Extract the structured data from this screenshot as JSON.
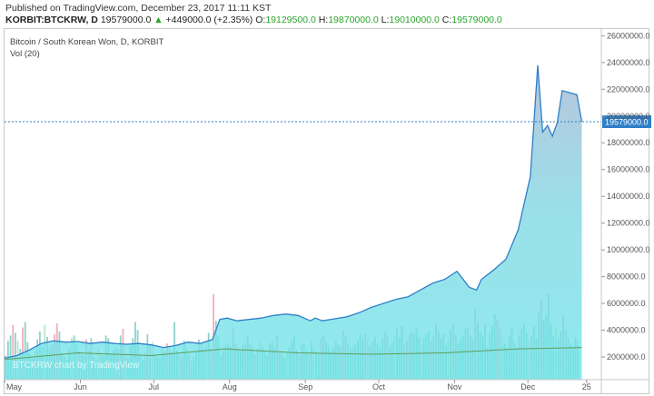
{
  "header": {
    "published": "Published on TradingView.com, December 23, 2017 11:11 KST",
    "symbol": "KORBIT:BTCKRW, D",
    "last": "19579000.0",
    "change": "+449000.0 (+2.35%)",
    "o_label": "O:",
    "o": "19129500.0",
    "h_label": "H:",
    "h": "19870000.0",
    "l_label": "L:",
    "l": "19010000.0",
    "c_label": "C:",
    "c": "19579000.0"
  },
  "chart_data": {
    "type": "area",
    "title": "Bitcoin / South Korean Won, D, KORBIT",
    "subtitle": "Vol (20)",
    "watermark": "BTCKRW chart by TradingView",
    "current_price_label": "19579000.0",
    "current_price": 19579000,
    "ylim": [
      0,
      26500000
    ],
    "y_ticks": [
      "2000000.0",
      "4000000.0",
      "6000000.0",
      "8000000.0",
      "10000000.0",
      "12000000.0",
      "14000000.0",
      "16000000.0",
      "18000000.0",
      "20000000.0",
      "22000000.0",
      "24000000.0",
      "26000000.0"
    ],
    "y_tick_values": [
      2000000,
      4000000,
      6000000,
      8000000,
      10000000,
      12000000,
      14000000,
      16000000,
      18000000,
      20000000,
      22000000,
      24000000,
      26000000
    ],
    "x_ticks": [
      "May",
      "Jun",
      "Jul",
      "Aug",
      "Sep",
      "Oct",
      "Nov",
      "Dec",
      "25"
    ],
    "x_tick_day_index": [
      0,
      31,
      61,
      92,
      123,
      153,
      184,
      214,
      238
    ],
    "series": [
      {
        "kind": "price",
        "day_index": [
          0,
          5,
          10,
          15,
          20,
          25,
          30,
          35,
          40,
          45,
          50,
          55,
          60,
          65,
          70,
          75,
          80,
          85,
          88,
          91,
          95,
          100,
          105,
          110,
          115,
          120,
          125,
          127,
          130,
          135,
          140,
          145,
          150,
          155,
          160,
          165,
          170,
          175,
          180,
          185,
          190,
          193,
          195,
          200,
          205,
          210,
          215,
          218,
          220,
          222,
          224,
          226,
          228,
          230,
          232,
          234,
          236
        ],
        "values": [
          1900000,
          2100000,
          2500000,
          3000000,
          3200000,
          3100000,
          3150000,
          3000000,
          3100000,
          3000000,
          2950000,
          3000000,
          2900000,
          2700000,
          2850000,
          3100000,
          3000000,
          3300000,
          4800000,
          4900000,
          4700000,
          4800000,
          4900000,
          5100000,
          5200000,
          5100000,
          4700000,
          4900000,
          4700000,
          4850000,
          5000000,
          5300000,
          5700000,
          6000000,
          6300000,
          6500000,
          7000000,
          7500000,
          7800000,
          8400000,
          7200000,
          7000000,
          7800000,
          8500000,
          9300000,
          11500000,
          15500000,
          23800000,
          18800000,
          19300000,
          18500000,
          19500000,
          21900000,
          21800000,
          21700000,
          21600000,
          19579000
        ]
      },
      {
        "kind": "volume_ma",
        "day_index": [
          0,
          30,
          60,
          90,
          120,
          150,
          180,
          210,
          236
        ],
        "values": [
          1800000,
          2300000,
          2100000,
          2600000,
          2300000,
          2200000,
          2300000,
          2600000,
          2700000
        ]
      }
    ],
    "volume_bars": [
      2.1,
      3.2,
      3.6,
      4.4,
      3.8,
      3.2,
      2.6,
      4.2,
      4.6,
      3.1,
      2.2,
      1.9,
      2.4,
      3.3,
      3.9,
      2.8,
      4.4,
      3.5,
      2.6,
      2.9,
      3.7,
      4.5,
      3.9,
      2.3,
      2.0,
      1.8,
      2.7,
      3.4,
      3.6,
      2.9,
      2.4,
      2.2,
      2.1,
      3.3,
      2.5,
      3.4,
      2.0,
      1.7,
      2.6,
      2.3,
      2.1,
      3.6,
      3.4,
      2.2,
      2.5,
      2.7,
      2.6,
      3.6,
      4.1,
      2.3,
      1.9,
      2.8,
      3.4,
      4.6,
      4.0,
      2.1,
      1.8,
      2.3,
      3.7,
      2.9,
      3.1,
      2.2,
      2.0,
      1.9,
      2.6,
      2.3,
      3.0,
      2.6,
      2.4,
      4.6,
      2.5,
      2.2,
      2.0,
      3.2,
      2.6,
      2.2,
      1.7,
      2.0,
      2.4,
      3.3,
      3.0,
      2.6,
      2.9,
      3.8,
      2.6,
      6.7,
      4.7,
      3.6,
      2.1,
      2.5,
      2.9,
      3.0,
      2.8,
      4.2,
      3.0,
      2.6,
      2.5,
      2.9,
      3.1,
      3.6,
      2.9,
      2.7,
      2.2,
      2.6,
      3.1,
      2.7,
      2.4,
      2.1,
      3.0,
      3.1,
      2.6,
      3.6,
      2.3,
      2.2,
      1.9,
      2.4,
      2.7,
      3.2,
      3.6,
      2.5,
      2.1,
      2.9,
      3.0,
      2.5,
      2.2,
      3.1,
      2.7,
      2.4,
      2.2,
      3.4,
      3.6,
      3.1,
      2.7,
      2.4,
      2.7,
      3.2,
      2.9,
      2.8,
      4.0,
      3.5,
      3.0,
      2.6,
      2.7,
      2.9,
      3.2,
      3.7,
      3.3,
      3.8,
      3.4,
      2.8,
      3.2,
      3.5,
      3.0,
      2.7,
      3.4,
      3.9,
      3.6,
      2.7,
      3.1,
      3.6,
      4.1,
      3.4,
      4.3,
      2.9,
      3.2,
      3.6,
      3.9,
      3.7,
      4.1,
      3.5,
      2.9,
      3.4,
      3.7,
      3.9,
      3.2,
      3.5,
      4.5,
      3.9,
      3.4,
      3.7,
      2.8,
      3.3,
      4.0,
      4.5,
      3.6,
      3.0,
      3.3,
      3.6,
      4.1,
      4.2,
      3.6,
      3.3,
      5.6,
      4.6,
      3.9,
      3.6,
      4.4,
      2.7,
      3.8,
      4.3,
      5.2,
      4.7,
      4.1,
      3.5,
      3.0,
      2.7,
      3.6,
      4.2,
      3.1,
      2.7,
      3.6,
      4.1,
      4.5,
      3.8,
      3.1,
      3.6,
      4.3,
      3.4,
      5.3,
      6.2,
      4.8,
      5.1,
      6.7,
      4.5,
      3.6,
      4.2,
      3.3,
      3.9,
      5.1,
      4.0,
      3.4,
      3.0,
      2.8,
      3.5,
      3.2
    ],
    "legend_placement": "top-left",
    "grid": false,
    "colors": {
      "area_fill": "#6ee5e9",
      "area_fill_top": "#a8b9d3",
      "price_line": "#2f7fc8",
      "volume_bar": "#7fcdc6",
      "volume_up": "#f0a5ad",
      "volume_green": "#b5e3c2",
      "volume_ma": "#5f9d5a",
      "current_line": "#2f7fc8",
      "axis": "#c8c8c8"
    }
  }
}
